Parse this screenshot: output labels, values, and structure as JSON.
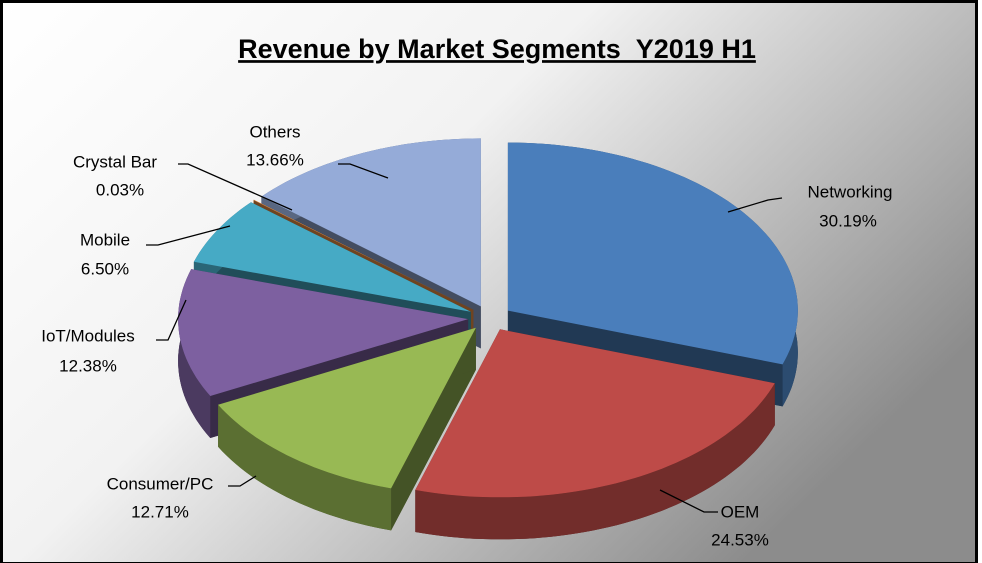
{
  "chart_data": {
    "type": "pie",
    "title": "Revenue by Market Segments_Y2019 H1",
    "categories": [
      "Networking",
      "OEM",
      "Consumer/PC",
      "IoT/Modules",
      "Mobile",
      "Crystal Bar",
      "Others"
    ],
    "values": [
      30.19,
      24.53,
      12.71,
      12.38,
      6.5,
      0.03,
      13.66
    ],
    "value_labels": [
      "30.19%",
      "24.53%",
      "12.71%",
      "12.38%",
      "6.50%",
      "0.03%",
      "13.66%"
    ],
    "colors": [
      "#4a7ebb",
      "#be4b48",
      "#98b954",
      "#7d60a0",
      "#46aac5",
      "#f79646",
      "#95abd8"
    ]
  }
}
